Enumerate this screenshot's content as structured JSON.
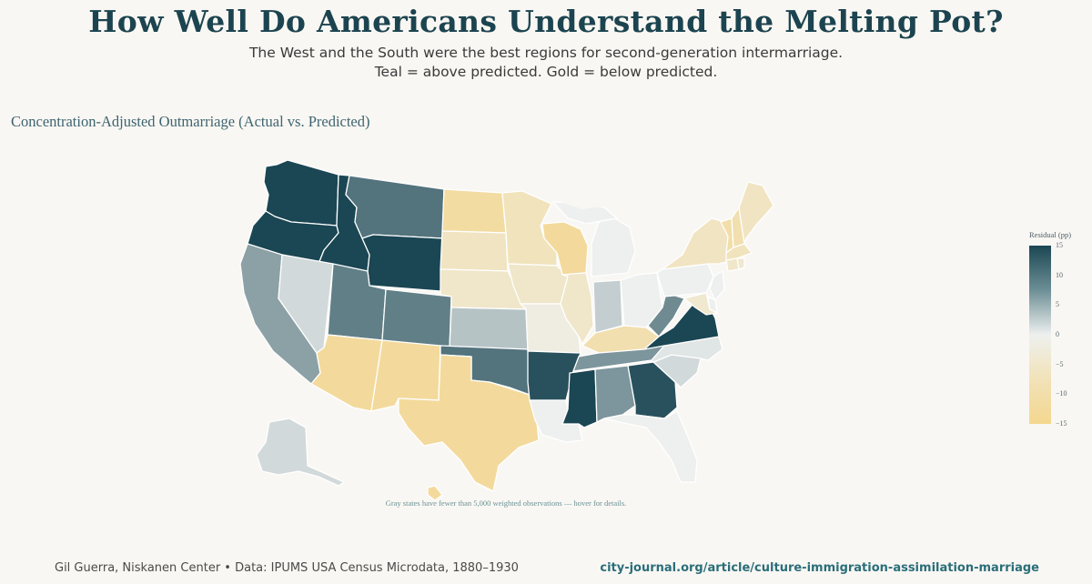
{
  "header": {
    "title": "How Well Do Americans Understand the Melting Pot?",
    "subtitle_line1": "The West and the South were the best regions for second-generation intermarriage.",
    "subtitle_line2": "Teal = above predicted. Gold = below predicted."
  },
  "chart_title": "Concentration-Adjusted Outmarriage (Actual vs. Predicted)",
  "legend": {
    "title": "Residual (pp)",
    "ticks": [
      "15",
      "10",
      "5",
      "0",
      "−5",
      "−10",
      "−15"
    ],
    "tick_values": [
      15,
      10,
      5,
      0,
      -5,
      -10,
      -15
    ],
    "range": [
      -15,
      15
    ]
  },
  "footnote": "Gray states have fewer than 5,000 weighted observations — hover for details.",
  "footer": {
    "credit": "Gil Guerra, Niskanen Center  •  Data: IPUMS USA Census Microdata, 1880–1930",
    "link": "city-journal.org/article/culture-immigration-assimilation-marriage"
  },
  "colors": {
    "teal_dark": "#1b4653",
    "neutral": "#eef0ef",
    "gold": "#f4d78f",
    "background": "#f9f7f3"
  },
  "chart_data": {
    "type": "choropleth",
    "title": "Concentration-Adjusted Outmarriage (Actual vs. Predicted)",
    "colorbar_label": "Residual (pp)",
    "range": [
      -15,
      15
    ],
    "states": [
      {
        "id": "WA",
        "value": 15
      },
      {
        "id": "OR",
        "value": 15
      },
      {
        "id": "ID",
        "value": 15
      },
      {
        "id": "MT",
        "value": 11
      },
      {
        "id": "WY",
        "value": 15
      },
      {
        "id": "CA",
        "value": 7
      },
      {
        "id": "NV",
        "value": 2
      },
      {
        "id": "UT",
        "value": 10
      },
      {
        "id": "CO",
        "value": 10
      },
      {
        "id": "AZ",
        "value": -13
      },
      {
        "id": "NM",
        "value": -13
      },
      {
        "id": "TX",
        "value": -13
      },
      {
        "id": "ND",
        "value": -12
      },
      {
        "id": "SD",
        "value": -7
      },
      {
        "id": "NE",
        "value": -6
      },
      {
        "id": "KS",
        "value": 4
      },
      {
        "id": "OK",
        "value": 11
      },
      {
        "id": "MN",
        "value": -8
      },
      {
        "id": "IA",
        "value": -6
      },
      {
        "id": "MO",
        "value": -2
      },
      {
        "id": "AR",
        "value": 14
      },
      {
        "id": "LA",
        "value": 0
      },
      {
        "id": "WI",
        "value": -13
      },
      {
        "id": "IL",
        "value": -6
      },
      {
        "id": "MI",
        "value": 0
      },
      {
        "id": "IN",
        "value": 3
      },
      {
        "id": "OH",
        "value": 0
      },
      {
        "id": "KY",
        "value": -10
      },
      {
        "id": "TN",
        "value": 8
      },
      {
        "id": "MS",
        "value": 15
      },
      {
        "id": "AL",
        "value": 8
      },
      {
        "id": "GA",
        "value": 14
      },
      {
        "id": "FL",
        "value": 0
      },
      {
        "id": "SC",
        "value": 2
      },
      {
        "id": "NC",
        "value": 1
      },
      {
        "id": "VA",
        "value": 15
      },
      {
        "id": "WV",
        "value": 9
      },
      {
        "id": "PA",
        "value": 0
      },
      {
        "id": "NY",
        "value": -7
      },
      {
        "id": "NJ",
        "value": 0
      },
      {
        "id": "DE",
        "value": 0
      },
      {
        "id": "MD",
        "value": -5
      },
      {
        "id": "VT",
        "value": -11
      },
      {
        "id": "NH",
        "value": -10
      },
      {
        "id": "ME",
        "value": -7
      },
      {
        "id": "MA",
        "value": -8
      },
      {
        "id": "CT",
        "value": -6
      },
      {
        "id": "RI",
        "value": -5
      },
      {
        "id": "AK",
        "value": 2
      },
      {
        "id": "HI",
        "value": -13
      }
    ]
  }
}
